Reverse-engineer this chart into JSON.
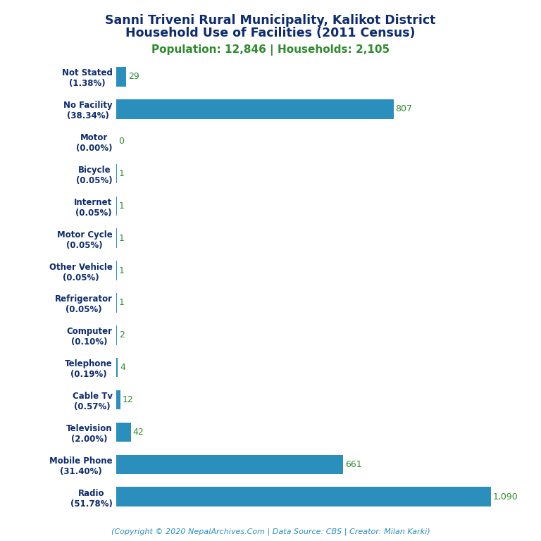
{
  "title_line1": "Sanni Triveni Rural Municipality, Kalikot District",
  "title_line2": "Household Use of Facilities (2011 Census)",
  "subtitle": "Population: 12,846 | Households: 2,105",
  "categories": [
    "Radio\n(51.78%)",
    "Mobile Phone\n(31.40%)",
    "Television\n(2.00%)",
    "Cable Tv\n(0.57%)",
    "Telephone\n(0.19%)",
    "Computer\n(0.10%)",
    "Refrigerator\n(0.05%)",
    "Other Vehicle\n(0.05%)",
    "Motor Cycle\n(0.05%)",
    "Internet\n(0.05%)",
    "Bicycle\n(0.05%)",
    "Motor\n(0.00%)",
    "No Facility\n(38.34%)",
    "Not Stated\n(1.38%)"
  ],
  "values": [
    1090,
    661,
    42,
    12,
    4,
    2,
    1,
    1,
    1,
    1,
    1,
    0,
    807,
    29
  ],
  "value_labels": [
    "1,090",
    "661",
    "42",
    "12",
    "4",
    "2",
    "1",
    "1",
    "1",
    "1",
    "1",
    "0",
    "807",
    "29"
  ],
  "bar_color": "#2a8fbd",
  "title_color": "#0d2b6e",
  "subtitle_color": "#2e8b2e",
  "value_color": "#2e8b2e",
  "copyright_text": "(Copyright © 2020 NepalArchives.Com | Data Source: CBS | Creator: Milan Karki)",
  "copyright_color": "#2a8fbd",
  "background_color": "#ffffff",
  "xlim": [
    0,
    1150
  ]
}
